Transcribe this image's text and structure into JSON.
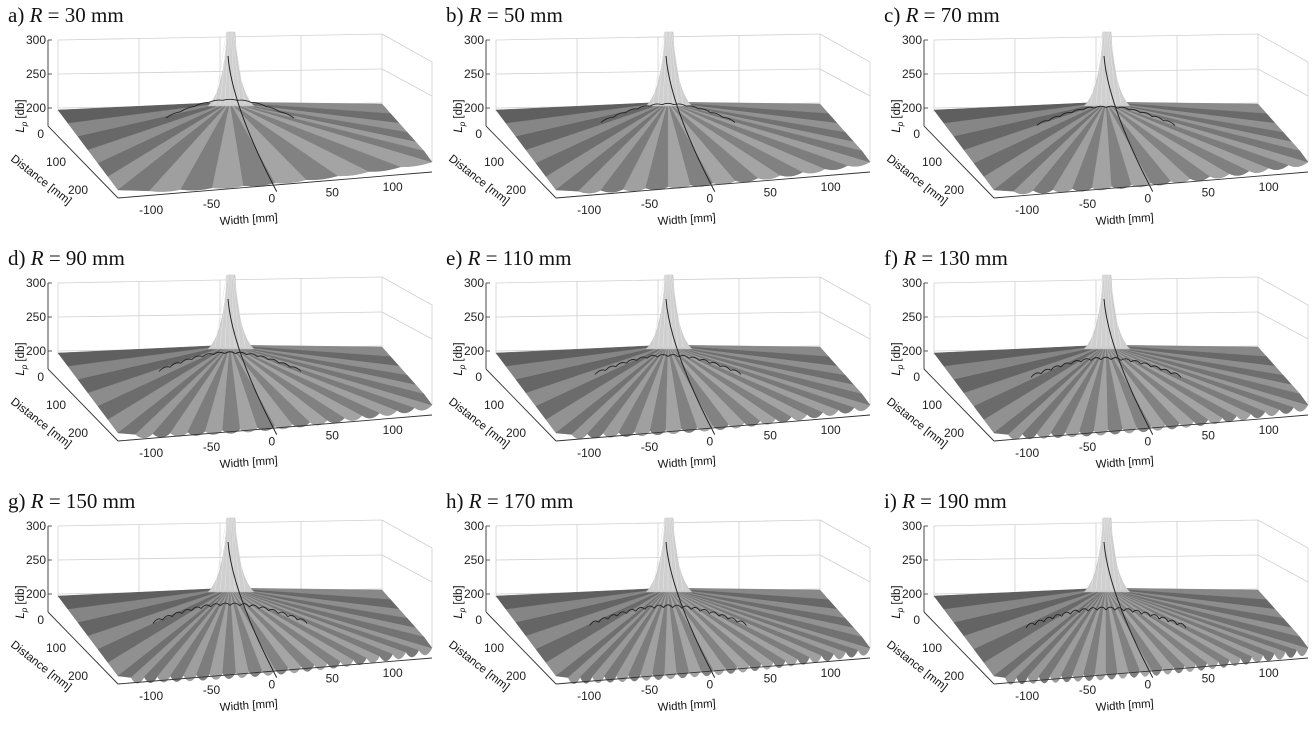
{
  "chart_data": [
    {
      "type": "surface",
      "panel": "a)",
      "R": "30",
      "unit": "mm",
      "zlabel_main": "L",
      "zlabel_sub": "p",
      "zlabel_unit": " [db]",
      "ylabel": "Distance [mm]",
      "xlabel": "Width [mm]",
      "zticks": [
        "300",
        "250",
        "200"
      ],
      "zmin_tick": "0",
      "yticks": [
        "0",
        "100",
        "200"
      ],
      "xticks": [
        "-100",
        "-50",
        "0",
        "50",
        "100"
      ],
      "xlim": [
        -120,
        120
      ],
      "ylim": [
        0,
        250
      ],
      "zlim": [
        150,
        300
      ],
      "ripple_count": 5,
      "ripple_depth": 0.2,
      "peak": 300,
      "plateau": 200
    },
    {
      "type": "surface",
      "panel": "b)",
      "R": "50",
      "unit": "mm",
      "zlabel_main": "L",
      "zlabel_sub": "p",
      "zlabel_unit": " [db]",
      "ylabel": "Distance [mm]",
      "xlabel": "Width [mm]",
      "zticks": [
        "300",
        "250",
        "200"
      ],
      "zmin_tick": "0",
      "yticks": [
        "0",
        "100",
        "200"
      ],
      "xticks": [
        "-100",
        "-50",
        "0",
        "50",
        "100"
      ],
      "xlim": [
        -120,
        120
      ],
      "ylim": [
        0,
        250
      ],
      "zlim": [
        150,
        300
      ],
      "ripple_count": 7,
      "ripple_depth": 0.35,
      "peak": 300,
      "plateau": 200
    },
    {
      "type": "surface",
      "panel": "c)",
      "R": "70",
      "unit": "mm",
      "zlabel_main": "L",
      "zlabel_sub": "p",
      "zlabel_unit": " [db]",
      "ylabel": "Distance [mm]",
      "xlabel": "Width [mm]",
      "zticks": [
        "300",
        "250",
        "200"
      ],
      "zmin_tick": "0",
      "yticks": [
        "0",
        "100",
        "200"
      ],
      "xticks": [
        "-100",
        "-50",
        "0",
        "50",
        "100"
      ],
      "xlim": [
        -120,
        120
      ],
      "ylim": [
        0,
        250
      ],
      "zlim": [
        150,
        300
      ],
      "ripple_count": 8,
      "ripple_depth": 0.45,
      "peak": 300,
      "plateau": 200
    },
    {
      "type": "surface",
      "panel": "d)",
      "R": "90",
      "unit": "mm",
      "zlabel_main": "L",
      "zlabel_sub": "p",
      "zlabel_unit": " [db]",
      "ylabel": "Distance [mm]",
      "xlabel": "Width [mm]",
      "zticks": [
        "300",
        "250",
        "200"
      ],
      "zmin_tick": "0",
      "yticks": [
        "0",
        "100",
        "200"
      ],
      "xticks": [
        "-100",
        "-50",
        "0",
        "50",
        "100"
      ],
      "xlim": [
        -120,
        120
      ],
      "ylim": [
        0,
        250
      ],
      "zlim": [
        150,
        300
      ],
      "ripple_count": 9,
      "ripple_depth": 0.55,
      "peak": 300,
      "plateau": 200
    },
    {
      "type": "surface",
      "panel": "e)",
      "R": "110",
      "unit": "mm",
      "zlabel_main": "L",
      "zlabel_sub": "p",
      "zlabel_unit": " [db]",
      "ylabel": "Distance [mm]",
      "xlabel": "Width [mm]",
      "zticks": [
        "300",
        "250",
        "200"
      ],
      "zmin_tick": "0",
      "yticks": [
        "0",
        "100",
        "200"
      ],
      "xticks": [
        "-100",
        "-50",
        "0",
        "50",
        "100"
      ],
      "xlim": [
        -120,
        120
      ],
      "ylim": [
        0,
        250
      ],
      "zlim": [
        150,
        300
      ],
      "ripple_count": 10,
      "ripple_depth": 0.65,
      "peak": 300,
      "plateau": 200
    },
    {
      "type": "surface",
      "panel": "f)",
      "R": "130",
      "unit": "mm",
      "zlabel_main": "L",
      "zlabel_sub": "p",
      "zlabel_unit": " [db]",
      "ylabel": "Distance [mm]",
      "xlabel": "Width [mm]",
      "zticks": [
        "300",
        "250",
        "200"
      ],
      "zmin_tick": "0",
      "yticks": [
        "0",
        "100",
        "200"
      ],
      "xticks": [
        "-100",
        "-50",
        "0",
        "50",
        "100"
      ],
      "xlim": [
        -120,
        120
      ],
      "ylim": [
        0,
        250
      ],
      "zlim": [
        150,
        300
      ],
      "ripple_count": 11,
      "ripple_depth": 0.75,
      "peak": 300,
      "plateau": 200
    },
    {
      "type": "surface",
      "panel": "g)",
      "R": "150",
      "unit": "mm",
      "zlabel_main": "L",
      "zlabel_sub": "p",
      "zlabel_unit": " [db]",
      "ylabel": "Distance [mm]",
      "xlabel": "Width [mm]",
      "zticks": [
        "300",
        "250",
        "200"
      ],
      "zmin_tick": "0",
      "yticks": [
        "0",
        "100",
        "200"
      ],
      "xticks": [
        "-100",
        "-50",
        "0",
        "50",
        "100"
      ],
      "xlim": [
        -120,
        120
      ],
      "ylim": [
        0,
        250
      ],
      "zlim": [
        150,
        300
      ],
      "ripple_count": 12,
      "ripple_depth": 0.85,
      "peak": 300,
      "plateau": 200
    },
    {
      "type": "surface",
      "panel": "h)",
      "R": "170",
      "unit": "mm",
      "zlabel_main": "L",
      "zlabel_sub": "p",
      "zlabel_unit": " [db]",
      "ylabel": "Distance [mm]",
      "xlabel": "Width [mm]",
      "zticks": [
        "300",
        "250",
        "200"
      ],
      "zmin_tick": "0",
      "yticks": [
        "0",
        "100",
        "200"
      ],
      "xticks": [
        "-100",
        "-50",
        "0",
        "50",
        "100"
      ],
      "xlim": [
        -120,
        120
      ],
      "ylim": [
        0,
        250
      ],
      "zlim": [
        150,
        300
      ],
      "ripple_count": 13,
      "ripple_depth": 0.92,
      "peak": 300,
      "plateau": 200
    },
    {
      "type": "surface",
      "panel": "i)",
      "R": "190",
      "unit": "mm",
      "zlabel_main": "L",
      "zlabel_sub": "p",
      "zlabel_unit": " [db]",
      "ylabel": "Distance [mm]",
      "xlabel": "Width [mm]",
      "zticks": [
        "300",
        "250",
        "200"
      ],
      "zmin_tick": "0",
      "yticks": [
        "0",
        "100",
        "200"
      ],
      "xticks": [
        "-100",
        "-50",
        "0",
        "50",
        "100"
      ],
      "xlim": [
        -120,
        120
      ],
      "ylim": [
        0,
        250
      ],
      "zlim": [
        150,
        300
      ],
      "ripple_count": 14,
      "ripple_depth": 1.0,
      "peak": 300,
      "plateau": 200
    }
  ]
}
